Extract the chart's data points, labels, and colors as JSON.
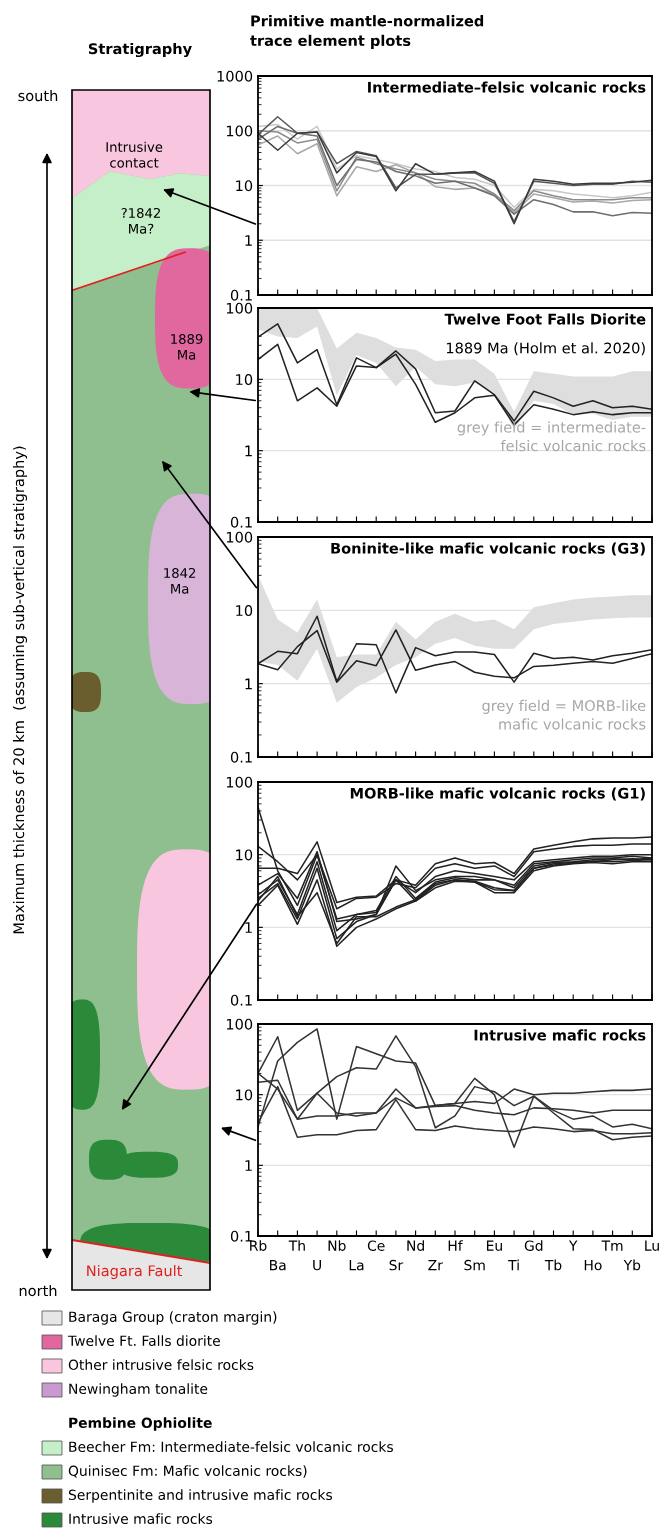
{
  "chart_data": [
    {
      "type": "other",
      "title": "Stratigraphy",
      "annotations": [
        "Primitive mantle-normalized\ntrace element plots",
        "south",
        "north",
        "Maximum thickness of 20 km  (assuming sub-vertical stratigraphy)",
        "Intrusive\ncontact",
        "?1842\nMa?",
        "1889\nMa",
        "1842\nMa",
        "Niagara Fault",
        "Baraga Group (craton margin)",
        "Twelve Ft. Falls diorite",
        "Other intrusive felsic rocks",
        "Newingham tonalite",
        "Pembine Ophiolite",
        "Beecher Fm: Intermediate-felsic volcanic rocks",
        "Quinisec Fm: Mafic volcanic rocks)",
        "Serpentinite and intrusive mafic rocks",
        "Intrusive mafic rocks"
      ]
    },
    {
      "type": "line",
      "title": "Intermediate–felsic volcanic rocks",
      "log": true,
      "ylim": [
        0.1,
        1000
      ],
      "yticks": [
        0.1,
        1,
        10,
        100,
        1000
      ],
      "grid": "y",
      "tick_labels": "y",
      "series": [
        {
          "color": "#c8c8c8",
          "values": [
            120,
            130,
            70,
            120,
            20,
            35,
            30,
            25,
            20,
            18,
            14,
            13,
            10,
            4,
            8.5,
            8,
            7,
            6.5,
            6,
            6.5,
            7.5
          ]
        },
        {
          "color": "#a8a8a8",
          "values": [
            55,
            80,
            38,
            58,
            6.5,
            22,
            18,
            24,
            17,
            9.5,
            8.5,
            9,
            7,
            3.2,
            7,
            6,
            5,
            5.2,
            4.8,
            5.3,
            5.5
          ]
        },
        {
          "color": "#8c8c8c",
          "values": [
            100,
            95,
            60,
            70,
            8,
            33,
            25,
            20,
            17,
            13,
            12,
            11,
            7,
            3.5,
            8,
            6.5,
            5.5,
            5.5,
            5.5,
            6,
            6
          ]
        },
        {
          "color": "#6e6e6e",
          "values": [
            70,
            120,
            90,
            80,
            10,
            30,
            27,
            18,
            15,
            11,
            12,
            9,
            6.5,
            3,
            5.5,
            4.5,
            3.3,
            3.3,
            2.8,
            3.2,
            3.1
          ]
        },
        {
          "color": "#555555",
          "values": [
            85,
            180,
            90,
            95,
            25,
            42,
            35,
            9,
            16,
            16,
            17,
            17,
            11,
            2.2,
            12,
            11,
            10,
            10.5,
            10.5,
            12,
            11.5
          ]
        },
        {
          "color": "#3a3a3a",
          "values": [
            90,
            44,
            90,
            95,
            17,
            40,
            34,
            8,
            25,
            16,
            17,
            18,
            12,
            2,
            13,
            12,
            10.5,
            11,
            11,
            11.5,
            12.5
          ]
        }
      ]
    },
    {
      "type": "line",
      "title": "Twelve Foot Falls Diorite",
      "subtitle": "1889 Ma (Holm et al. 2020)",
      "annotations": [
        "grey field = intermediate-\nfelsic volcanic rocks"
      ],
      "log": true,
      "ylim": [
        0.1,
        100
      ],
      "yticks": [
        0.1,
        1,
        10,
        100
      ],
      "grid": "y",
      "tick_labels": "y",
      "series": [
        {
          "type": "area",
          "color": "#dedede",
          "values": [
            null,
            null,
            null,
            null,
            null,
            null,
            null,
            null,
            null,
            null,
            null,
            null,
            null,
            null,
            null,
            null,
            null,
            null,
            null,
            null,
            null
          ],
          "lower": [
            50,
            40,
            38,
            55,
            6,
            22,
            17,
            8,
            15,
            8.5,
            8,
            9,
            6.5,
            2,
            5,
            4.5,
            3.2,
            3.3,
            2.7,
            3,
            3
          ],
          "upper": [
            100,
            100,
            100,
            100,
            27,
            45,
            38,
            28,
            26,
            18,
            19,
            19,
            12,
            3.5,
            13,
            12,
            11,
            11,
            11,
            13,
            13
          ]
        },
        {
          "color": "#222222",
          "values": [
            39,
            60,
            17,
            26,
            4.4,
            20,
            14.6,
            25,
            14,
            3.4,
            3.6,
            9.5,
            6.1,
            2.6,
            6.8,
            5.5,
            4.2,
            5,
            4,
            4.2,
            3.8
          ]
        },
        {
          "color": "#222222",
          "values": [
            19,
            31,
            5,
            7.6,
            4.2,
            15.4,
            14.6,
            22.5,
            8.5,
            2.5,
            3.4,
            5.5,
            6,
            2.3,
            4.4,
            3.8,
            3.2,
            3.5,
            3.2,
            3.4,
            3.4
          ]
        }
      ]
    },
    {
      "type": "line",
      "title": "Boninite-like mafic volcanic rocks (G3)",
      "annotations": [
        "grey field = MORB-like\nmafic volcanic rocks"
      ],
      "log": true,
      "ylim": [
        0.1,
        100
      ],
      "yticks": [
        0.1,
        1,
        10,
        100
      ],
      "grid": "y",
      "tick_labels": "y",
      "series": [
        {
          "type": "area",
          "color": "#dedede",
          "values": [
            null,
            null,
            null,
            null,
            null,
            null,
            null,
            null,
            null,
            null,
            null,
            null,
            null,
            null,
            null,
            null,
            null,
            null,
            null,
            null,
            null
          ],
          "lower": [
            2,
            1.8,
            1.1,
            3,
            0.55,
            0.9,
            1.2,
            1.8,
            2.3,
            3.5,
            4.2,
            3.3,
            3,
            3,
            5.5,
            6.5,
            7,
            7.5,
            7.8,
            8,
            8
          ],
          "upper": [
            30,
            7.5,
            5,
            14,
            2.3,
            2.5,
            2.5,
            7,
            4,
            7,
            9,
            7,
            7.5,
            5.5,
            11,
            12.5,
            14,
            15,
            15.5,
            16,
            16
          ]
        },
        {
          "color": "#222222",
          "values": [
            1.87,
            2.76,
            2.56,
            8.3,
            1.07,
            3.5,
            3.4,
            0.75,
            3.1,
            2.4,
            2.7,
            2.7,
            2.5,
            1.05,
            2.6,
            2.2,
            2.3,
            2.1,
            2.4,
            2.6,
            2.9
          ]
        },
        {
          "color": "#222222",
          "values": [
            1.87,
            1.55,
            3.2,
            5.3,
            1.05,
            2.06,
            1.76,
            5.4,
            1.52,
            1.8,
            2,
            1.43,
            1.26,
            1.2,
            1.72,
            1.78,
            1.9,
            2,
            1.9,
            2.2,
            2.56
          ]
        }
      ]
    },
    {
      "type": "line",
      "title": "MORB-like mafic volcanic rocks (G1)",
      "log": true,
      "ylim": [
        0.1,
        100
      ],
      "yticks": [
        0.1,
        1,
        10,
        100
      ],
      "grid": "y",
      "tick_labels": "y",
      "series": [
        {
          "color": "#222222",
          "values": [
            6.5,
            6.5,
            5.5,
            15,
            2.2,
            2.6,
            2.7,
            4.5,
            3.8,
            7.5,
            9,
            7.5,
            7.8,
            5.5,
            12,
            13.5,
            15,
            16.5,
            17,
            17,
            17.5
          ]
        },
        {
          "color": "#222222",
          "values": [
            13,
            8,
            4.5,
            10,
            1.8,
            2.5,
            2.6,
            4,
            3.5,
            6.5,
            7.5,
            6.5,
            7,
            5,
            11,
            12,
            13,
            13.5,
            13.5,
            14,
            14
          ]
        },
        {
          "color": "#222222",
          "values": [
            45,
            6,
            2,
            10,
            1.3,
            1.5,
            1.6,
            4.5,
            3,
            5,
            6,
            5.5,
            5,
            4.5,
            8,
            8.5,
            9,
            9.5,
            9.5,
            10,
            10
          ]
        },
        {
          "color": "#222222",
          "values": [
            3.8,
            5.5,
            2.5,
            11,
            1.2,
            1.3,
            1.5,
            7,
            3.2,
            4.5,
            5,
            5,
            4.5,
            3.8,
            7.5,
            8,
            8.5,
            9,
            9,
            9.5,
            9
          ]
        },
        {
          "color": "#222222",
          "values": [
            2.8,
            4.5,
            1.5,
            8,
            0.9,
            1.5,
            1.7,
            5,
            2.5,
            4.2,
            4.8,
            4.5,
            4.5,
            3.5,
            7,
            7.8,
            8,
            8.5,
            8.8,
            8.5,
            9
          ]
        },
        {
          "color": "#222222",
          "values": [
            2.5,
            4,
            1.3,
            6.5,
            0.7,
            1.2,
            1.5,
            4.5,
            2.3,
            3.8,
            4.5,
            4.3,
            3.5,
            3.2,
            6.5,
            7.5,
            7.8,
            8,
            8.5,
            8.8,
            8.5
          ]
        },
        {
          "color": "#222222",
          "values": [
            2,
            3.8,
            1.1,
            4.5,
            0.55,
            1,
            1.3,
            1.8,
            2.3,
            3.5,
            4.3,
            4.2,
            3,
            3,
            6,
            7,
            7.5,
            7.8,
            7.5,
            8,
            8
          ]
        },
        {
          "color": "#222222",
          "values": [
            2.3,
            5,
            1.4,
            3,
            0.6,
            1.4,
            1.4,
            1.9,
            2.4,
            4,
            4.5,
            4.2,
            3.3,
            3.2,
            6.5,
            7.2,
            7.6,
            8.2,
            8,
            8.3,
            8.5
          ]
        }
      ]
    },
    {
      "type": "line",
      "title": "Intrusive mafic rocks",
      "categories": [
        "Rb",
        "Ba",
        "Th",
        "U",
        "Nb",
        "La",
        "Ce",
        "Sr",
        "Nd",
        "Zr",
        "Hf",
        "Sm",
        "Eu",
        "Ti",
        "Gd",
        "Tb",
        "Y",
        "Ho",
        "Tm",
        "Yb",
        "Lu"
      ],
      "log": true,
      "ylim": [
        0.1,
        100
      ],
      "yticks": [
        0.1,
        1,
        10,
        100
      ],
      "grid": "y",
      "series": [
        {
          "color": "#333333",
          "values": [
            20,
            66,
            6,
            10.5,
            5.5,
            5,
            5.5,
            12,
            6.5,
            7,
            7.5,
            8,
            7.5,
            12,
            10,
            10.5,
            10.5,
            11,
            11.5,
            11.5,
            12
          ]
        },
        {
          "color": "#333333",
          "values": [
            3.5,
            30,
            55,
            85,
            4.5,
            48,
            38,
            30,
            28,
            7,
            7.5,
            17,
            10,
            1.8,
            9.5,
            6,
            4.5,
            5,
            3.5,
            3.8,
            3.3
          ]
        },
        {
          "color": "#333333",
          "values": [
            20,
            12,
            4.5,
            10.5,
            18,
            24,
            23,
            68,
            25,
            3.4,
            5,
            13,
            11,
            7,
            9.5,
            5.5,
            3.3,
            3.2,
            2.3,
            2.5,
            2.6
          ]
        },
        {
          "color": "#333333",
          "values": [
            15,
            16,
            4.5,
            5,
            5,
            5.5,
            5.5,
            9,
            6.5,
            6.8,
            7,
            6,
            5.5,
            5.2,
            6.5,
            6.3,
            6,
            5.5,
            6,
            6,
            6
          ]
        },
        {
          "color": "#333333",
          "values": [
            4,
            13,
            2.5,
            2.7,
            2.7,
            3.1,
            3.2,
            8.5,
            3.2,
            3.1,
            3.6,
            3.3,
            3.1,
            3,
            3.5,
            3.3,
            3,
            3.1,
            2.8,
            2.8,
            2.9
          ]
        }
      ]
    }
  ]
}
